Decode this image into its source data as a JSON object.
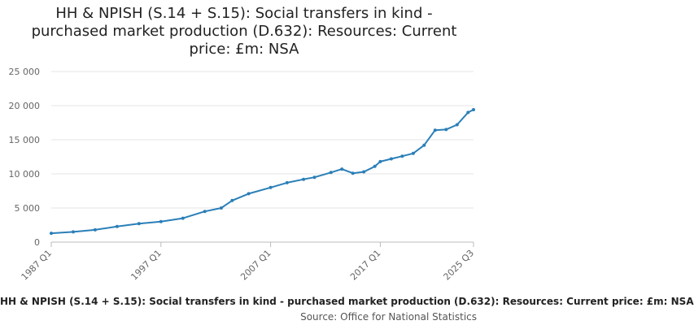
{
  "chart_data": {
    "type": "line",
    "title": "HH & NPISH (S.14 + S.15): Social transfers in kind - purchased market production (D.632): Resources: Current price: £m: NSA",
    "xlabel": "",
    "ylabel": "",
    "x_tick_labels": [
      "1987 Q1",
      "1997 Q1",
      "2007 Q1",
      "2017 Q1",
      "2025 Q3"
    ],
    "y_tick_labels": [
      "0",
      "5 000",
      "10 000",
      "15 000",
      "20 000",
      "25 000"
    ],
    "ylim": [
      0,
      25000
    ],
    "grid": true,
    "legend": "bottom",
    "color": "#2a7fb8",
    "series": [
      {
        "name": "HH & NPISH (S.14 + S.15): Social transfers in kind - purchased market production (D.632): Resources: Current price: £m: NSA",
        "x": [
          "1987 Q1",
          "1989 Q1",
          "1991 Q1",
          "1993 Q1",
          "1995 Q1",
          "1997 Q1",
          "1999 Q1",
          "2001 Q1",
          "2002 Q3",
          "2003 Q3",
          "2005 Q1",
          "2007 Q1",
          "2008 Q3",
          "2010 Q1",
          "2011 Q1",
          "2012 Q3",
          "2013 Q3",
          "2014 Q3",
          "2015 Q3",
          "2016 Q3",
          "2017 Q1",
          "2018 Q1",
          "2019 Q1",
          "2020 Q1",
          "2021 Q1",
          "2022 Q1",
          "2023 Q1",
          "2024 Q1",
          "2025 Q1",
          "2025 Q3"
        ],
        "values": [
          1300,
          1500,
          1800,
          2300,
          2700,
          3000,
          3500,
          4500,
          5000,
          6100,
          7100,
          8000,
          8700,
          9200,
          9500,
          10200,
          10700,
          10100,
          10300,
          11100,
          11800,
          12200,
          12600,
          13000,
          14200,
          16400,
          16500,
          17200,
          19000,
          19400
        ]
      }
    ]
  },
  "legend_text": "HH & NPISH (S.14 + S.15): Social transfers in kind - purchased market production (D.632): Resources: Current price: £m: NSA",
  "credit_text": "Source: Office for National Statistics"
}
